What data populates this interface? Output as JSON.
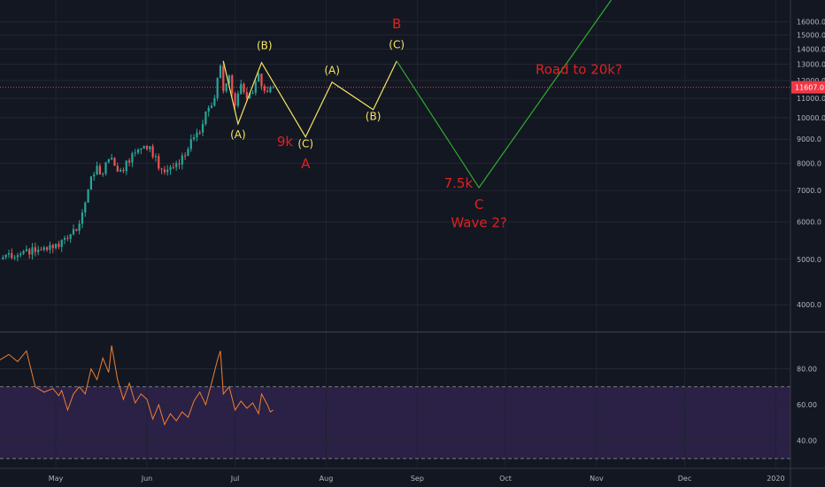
{
  "chart_data": {
    "type": "line",
    "title": "",
    "grid": true,
    "x_months": [
      "May",
      "Jun",
      "Jul",
      "Aug",
      "Sep",
      "Oct",
      "Nov",
      "Dec",
      "2020"
    ],
    "x_dates": [
      "2019-05-01",
      "2019-06-01",
      "2019-07-01",
      "2019-08-01",
      "2019-09-01",
      "2019-10-01",
      "2019-11-01",
      "2019-12-01",
      "2020-01-01"
    ],
    "xlim": [
      "2019-04-12",
      "2020-01-06"
    ],
    "price_pane": {
      "scale": "log",
      "ylim": [
        3500,
        17800
      ],
      "y_ticks": [
        "4000.0",
        "5000.0",
        "6000.0",
        "7000.0",
        "8000.0",
        "9000.0",
        "10000.0",
        "11000.0",
        "12000.0",
        "13000.0",
        "14000.0",
        "15000.0",
        "16000.0"
      ],
      "last_price_label": "11607.0",
      "last_price": 11607,
      "price_line_color": "#f23645",
      "up_color": "#26a69a",
      "down_color": "#ef5350",
      "candles": [
        {
          "d": "2019-04-12",
          "c": 5000
        },
        {
          "d": "2019-04-15",
          "c": 5150
        },
        {
          "d": "2019-04-18",
          "c": 5100
        },
        {
          "d": "2019-04-21",
          "c": 5250
        },
        {
          "d": "2019-04-24",
          "c": 5180
        },
        {
          "d": "2019-04-27",
          "c": 5300
        },
        {
          "d": "2019-04-30",
          "c": 5280
        },
        {
          "d": "2019-05-03",
          "c": 5500
        },
        {
          "d": "2019-05-06",
          "c": 5650
        },
        {
          "d": "2019-05-09",
          "c": 5950
        },
        {
          "d": "2019-05-11",
          "c": 6600
        },
        {
          "d": "2019-05-13",
          "c": 7500
        },
        {
          "d": "2019-05-15",
          "c": 7900
        },
        {
          "d": "2019-05-17",
          "c": 7600
        },
        {
          "d": "2019-05-19",
          "c": 8150
        },
        {
          "d": "2019-05-21",
          "c": 7900
        },
        {
          "d": "2019-05-24",
          "c": 7700
        },
        {
          "d": "2019-05-27",
          "c": 8400
        },
        {
          "d": "2019-05-30",
          "c": 8600
        },
        {
          "d": "2019-06-02",
          "c": 8700
        },
        {
          "d": "2019-06-05",
          "c": 7800
        },
        {
          "d": "2019-06-08",
          "c": 7750
        },
        {
          "d": "2019-06-11",
          "c": 8000
        },
        {
          "d": "2019-06-14",
          "c": 8300
        },
        {
          "d": "2019-06-16",
          "c": 9000
        },
        {
          "d": "2019-06-18",
          "c": 9300
        },
        {
          "d": "2019-06-20",
          "c": 9700
        },
        {
          "d": "2019-06-22",
          "c": 10500
        },
        {
          "d": "2019-06-24",
          "c": 11000
        },
        {
          "d": "2019-06-26",
          "c": 12900
        },
        {
          "d": "2019-06-27",
          "c": 11400
        },
        {
          "d": "2019-06-29",
          "c": 12300
        },
        {
          "d": "2019-07-01",
          "c": 10600
        },
        {
          "d": "2019-07-03",
          "c": 11800
        },
        {
          "d": "2019-07-05",
          "c": 11000
        },
        {
          "d": "2019-07-07",
          "c": 11300
        },
        {
          "d": "2019-07-09",
          "c": 12400
        },
        {
          "d": "2019-07-11",
          "c": 11400
        },
        {
          "d": "2019-07-13",
          "c": 11600
        },
        {
          "d": "2019-07-14",
          "c": 11607
        }
      ]
    },
    "projection_yellow": [
      {
        "d": "2019-06-27",
        "y": 13200
      },
      {
        "d": "2019-07-02",
        "y": 9700
      },
      {
        "d": "2019-07-10",
        "y": 13100
      },
      {
        "d": "2019-07-25",
        "y": 9100
      },
      {
        "d": "2019-08-03",
        "y": 11900
      },
      {
        "d": "2019-08-17",
        "y": 10400
      },
      {
        "d": "2019-08-25",
        "y": 13200
      }
    ],
    "projection_green": [
      {
        "d": "2019-08-25",
        "y": 13200
      },
      {
        "d": "2019-09-22",
        "y": 7100
      },
      {
        "d": "2019-11-06",
        "y": 17800
      }
    ],
    "yellow_color": "#f5e663",
    "green_color": "#2eab2e",
    "red_color": "#e02020",
    "annotations": [
      {
        "text": "(A)",
        "color": "yellow",
        "d": "2019-07-02",
        "y": 9050
      },
      {
        "text": "(B)",
        "color": "yellow",
        "d": "2019-07-11",
        "y": 14000
      },
      {
        "text": "(C)",
        "color": "yellow",
        "d": "2019-07-25",
        "y": 8650
      },
      {
        "text": "(A)",
        "color": "yellow",
        "d": "2019-08-03",
        "y": 12400
      },
      {
        "text": "(B)",
        "color": "yellow",
        "d": "2019-08-17",
        "y": 9900
      },
      {
        "text": "(C)",
        "color": "yellow",
        "d": "2019-08-25",
        "y": 14050
      },
      {
        "text": "B",
        "color": "red",
        "d": "2019-08-25",
        "y": 15500
      },
      {
        "text": "9k",
        "color": "red",
        "d": "2019-07-18",
        "y": 8700
      },
      {
        "text": "A",
        "color": "red",
        "d": "2019-07-25",
        "y": 7800
      },
      {
        "text": "7.5k",
        "color": "red",
        "d": "2019-09-15",
        "y": 7100
      },
      {
        "text": "C",
        "color": "red",
        "d": "2019-09-22",
        "y": 6400
      },
      {
        "text": "Wave 2?",
        "color": "red",
        "d": "2019-09-22",
        "y": 5850
      },
      {
        "text": "Road to 20k?",
        "color": "red",
        "d": "2019-10-26",
        "y": 12400
      }
    ],
    "rsi_pane": {
      "ylim": [
        25,
        100
      ],
      "y_ticks": [
        "40.00",
        "60.00",
        "80.00"
      ],
      "upper_band": 70,
      "lower_band": 30,
      "band_fill": "#2b2046",
      "line_color": "#ef7f2f",
      "values": [
        {
          "d": "2019-04-12",
          "v": 85
        },
        {
          "d": "2019-04-15",
          "v": 88
        },
        {
          "d": "2019-04-18",
          "v": 84
        },
        {
          "d": "2019-04-21",
          "v": 90
        },
        {
          "d": "2019-04-24",
          "v": 70
        },
        {
          "d": "2019-04-27",
          "v": 67
        },
        {
          "d": "2019-04-30",
          "v": 69
        },
        {
          "d": "2019-05-02",
          "v": 65
        },
        {
          "d": "2019-05-03",
          "v": 68
        },
        {
          "d": "2019-05-05",
          "v": 57
        },
        {
          "d": "2019-05-07",
          "v": 66
        },
        {
          "d": "2019-05-09",
          "v": 70
        },
        {
          "d": "2019-05-11",
          "v": 66
        },
        {
          "d": "2019-05-13",
          "v": 80
        },
        {
          "d": "2019-05-15",
          "v": 74
        },
        {
          "d": "2019-05-17",
          "v": 86
        },
        {
          "d": "2019-05-19",
          "v": 78
        },
        {
          "d": "2019-05-20",
          "v": 93
        },
        {
          "d": "2019-05-22",
          "v": 74
        },
        {
          "d": "2019-05-24",
          "v": 63
        },
        {
          "d": "2019-05-26",
          "v": 72
        },
        {
          "d": "2019-05-28",
          "v": 61
        },
        {
          "d": "2019-05-30",
          "v": 66
        },
        {
          "d": "2019-06-01",
          "v": 63
        },
        {
          "d": "2019-06-03",
          "v": 52
        },
        {
          "d": "2019-06-05",
          "v": 60
        },
        {
          "d": "2019-06-07",
          "v": 49
        },
        {
          "d": "2019-06-09",
          "v": 55
        },
        {
          "d": "2019-06-11",
          "v": 51
        },
        {
          "d": "2019-06-13",
          "v": 56
        },
        {
          "d": "2019-06-15",
          "v": 53
        },
        {
          "d": "2019-06-17",
          "v": 62
        },
        {
          "d": "2019-06-19",
          "v": 67
        },
        {
          "d": "2019-06-21",
          "v": 60
        },
        {
          "d": "2019-06-23",
          "v": 72
        },
        {
          "d": "2019-06-25",
          "v": 85
        },
        {
          "d": "2019-06-26",
          "v": 90
        },
        {
          "d": "2019-06-27",
          "v": 66
        },
        {
          "d": "2019-06-29",
          "v": 70
        },
        {
          "d": "2019-07-01",
          "v": 57
        },
        {
          "d": "2019-07-03",
          "v": 62
        },
        {
          "d": "2019-07-05",
          "v": 58
        },
        {
          "d": "2019-07-07",
          "v": 61
        },
        {
          "d": "2019-07-09",
          "v": 55
        },
        {
          "d": "2019-07-10",
          "v": 66
        },
        {
          "d": "2019-07-12",
          "v": 60
        },
        {
          "d": "2019-07-13",
          "v": 56
        },
        {
          "d": "2019-07-14",
          "v": 57
        }
      ]
    }
  }
}
